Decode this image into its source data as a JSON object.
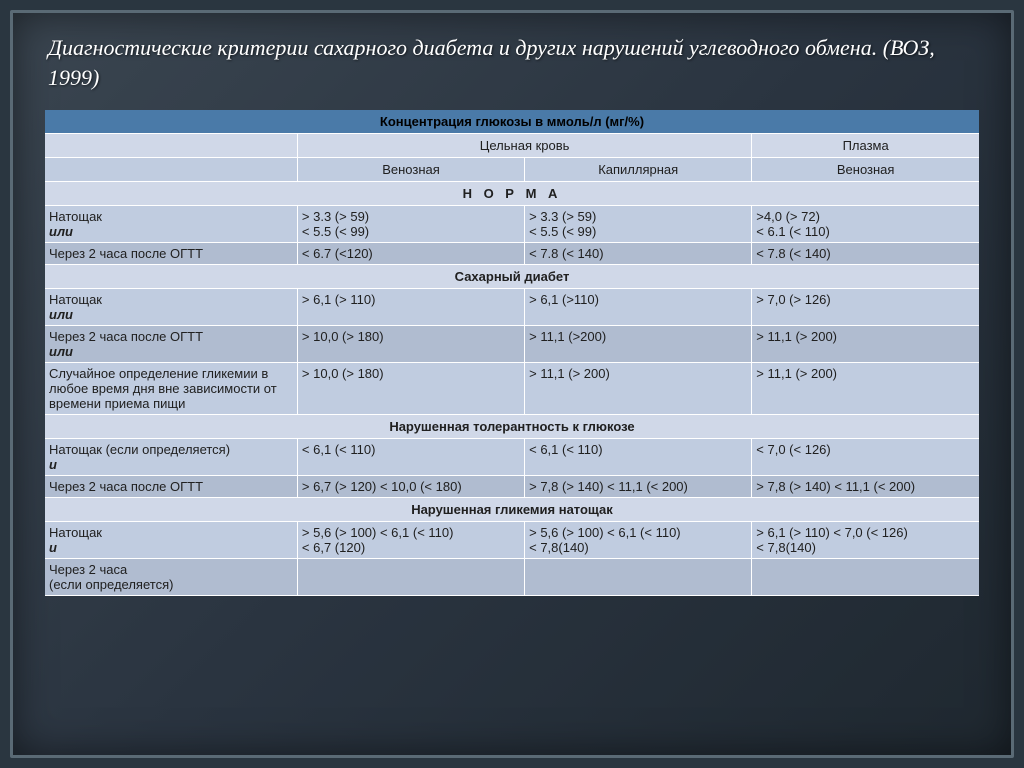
{
  "title": "Диагностические критерии сахарного диабета и других нарушений углеводного обмена. (ВОЗ, 1999)",
  "header": {
    "main": "Концентрация глюкозы в ммоль/л (мг/%)",
    "whole_blood": "Цельная кровь",
    "plasma": "Плазма",
    "venous": "Венозная",
    "capillary": "Капиллярная",
    "venous2": "Венозная"
  },
  "sections": {
    "norm": "Н О Р М А",
    "diabetes": "Сахарный диабет",
    "igt": "Нарушенная толерантность к глюкозе",
    "ifg": "Нарушенная гликемия натощак"
  },
  "labels": {
    "fasting": "Натощак",
    "or": "или",
    "and": "и",
    "ogtt2h": "Через 2 часа после ОГТТ",
    "random": "Случайное определение гликемии в любое время дня вне зависимости от времени приема пищи",
    "fasting_if": "Натощак (если определяется)",
    "after2h_if": "Через 2 часа\n(если определяется)"
  },
  "norm": {
    "r1": {
      "c1": "> 3.3 (> 59)\n< 5.5 (< 99)",
      "c2": "> 3.3 (> 59)\n< 5.5 (< 99)",
      "c3": ">4,0 (> 72)\n< 6.1 (< 110)"
    },
    "r2": {
      "c1": "< 6.7 (<120)",
      "c2": "< 7.8 (< 140)",
      "c3": "< 7.8 (< 140)"
    }
  },
  "dm": {
    "r1": {
      "c1": "> 6,1 (> 110)",
      "c2": "> 6,1 (>110)",
      "c3": "> 7,0 (> 126)"
    },
    "r2": {
      "c1": "> 10,0 (> 180)",
      "c2": "> 11,1 (>200)",
      "c3": "> 11,1 (> 200)"
    },
    "r3": {
      "c1": "> 10,0 (> 180)",
      "c2": "> 11,1 (> 200)",
      "c3": "> 11,1 (> 200)"
    }
  },
  "igt": {
    "r1": {
      "c1": "< 6,1 (< 110)",
      "c2": "< 6,1 (< 110)",
      "c3": "< 7,0 (< 126)"
    },
    "r2": {
      "c1": "> 6,7 (> 120)  < 10,0 (< 180)",
      "c2": "> 7,8 (> 140)  < 11,1 (< 200)",
      "c3": "> 7,8 (> 140)  < 11,1 (< 200)"
    }
  },
  "ifg": {
    "r1": {
      "c1": "> 5,6 (> 100)  < 6,1 (< 110)\n< 6,7 (120)",
      "c2": "> 5,6 (> 100) < 6,1 (< 110)\n< 7,8(140)",
      "c3": "> 6,1 (> 110)  < 7,0 (< 126)\n< 7,8(140)"
    }
  },
  "colors": {
    "frame_bg": "#2a3640",
    "border": "#5a6a75",
    "title": "#ffffff",
    "hdr_blue": "#4a7aa8",
    "row_light": "#d0d8e8",
    "row_mid": "#c0cce0",
    "row_dark": "#b0bcd0"
  },
  "fontsize": {
    "title": 22,
    "body": 13
  }
}
